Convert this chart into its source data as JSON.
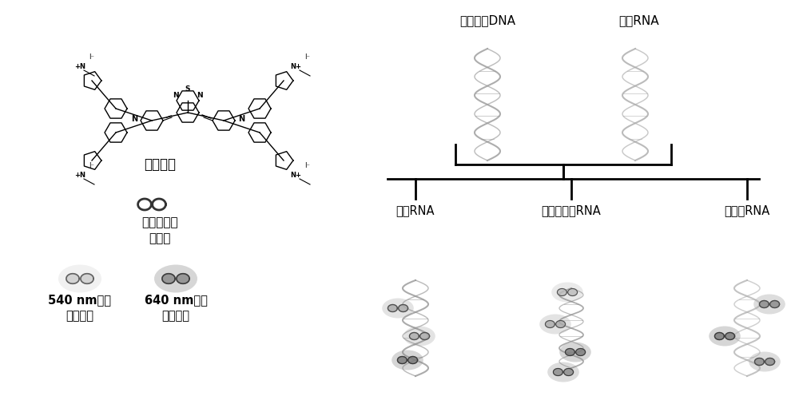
{
  "bg_color": "#ffffff",
  "fig_width": 10.0,
  "fig_height": 5.11,
  "dpi": 100,
  "label_shi_yi": "式（一）",
  "label_single_mol": "单分屐状态",
  "label_no_emit": "不发光",
  "label_540": "540 nm荧光",
  "label_groove": "沟槽结合",
  "label_640": "640 nm荧光",
  "label_electro": "静电结合",
  "label_probe_dna": "探针单链DNA",
  "label_target_rna_top": "待测RNA",
  "label_target_rna": "目标RNA",
  "label_single_mut": "单碌基突变RNA",
  "label_non_target": "非目标RNA",
  "line_color": "#000000",
  "text_color": "#000000"
}
